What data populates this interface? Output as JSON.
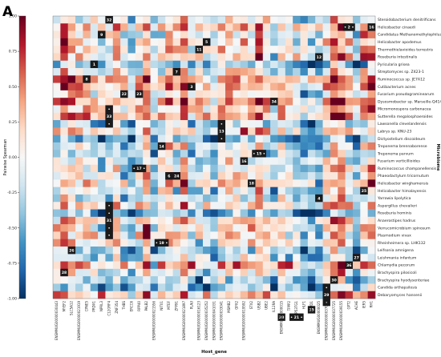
{
  "chart_data": {
    "type": "heatmap",
    "panel_label": "A",
    "title": "",
    "xlabel": "Host_gene",
    "ylabel": "Microbiome",
    "colorbar_label": "Pairwise Spearman",
    "colorbar_range": [
      -1.0,
      1.0
    ],
    "colorbar_ticks": [
      "1.00",
      "0.75",
      "0.50",
      "0.25",
      "0.00",
      "-0.25",
      "-0.50",
      "-0.75",
      "-1.00"
    ],
    "colorscale": [
      "#053061",
      "#2166ac",
      "#4393c3",
      "#92c5de",
      "#d1e5f0",
      "#f7f7f7",
      "#fddbc7",
      "#f4a582",
      "#d6604d",
      "#b2182b",
      "#67001f"
    ],
    "x_categories": [
      "ENSMMUG00000030443",
      "MYEF2",
      "SLC5A12",
      "ENSMMUG00000021919",
      "CPNE5",
      "PRDX1",
      "NPRL3",
      "C12ORF4",
      "ZNF354",
      "THBS",
      "ERCC6",
      "RPP40",
      "PALB2",
      "ENSMMUG00000021556",
      "NIT01",
      "MTEF",
      "ZFP91",
      "ENSMMUG00000021897",
      "PLAU",
      "ENSMMUG00000016123",
      "ENSMMUG00000035252",
      "ENSMMUG00000041031",
      "ENSMMUG00000033041",
      "MSMB2",
      "GPX2",
      "ENSMMUG00000019592",
      "STX2",
      "USB2",
      "UBE2",
      "IL12RA",
      "ENSMMUG00000015",
      "TPPP2",
      "TP53TG1",
      "HLF1",
      "GRWD1",
      "ENSMMUG00000025",
      "ENSMMUG00000037016",
      "ENSMMUG00000037725",
      "ENSMMUG00000039155",
      "GPT2",
      "ACHE",
      "IER5",
      "RH1"
    ],
    "y_categories": [
      "Steroidobacterium denitrificans",
      "Helicobacter cinaedi",
      "Candidatus Methanomethylophilus alvus",
      "Helicobacter apodemus",
      "Thermothielavioides terrestris",
      "Roseburia intestinalis",
      "Pyricularia grisea",
      "Streptomyces sp. Z423-1",
      "Ruminococcus sp. JE7A12",
      "Cutibacterium acnes",
      "Fusarium pseudograminearum",
      "Dysosmobacter sp. Marseille-Q4140",
      "Micromonospora carbonacea",
      "Sutterella megalosphaeroides",
      "Lawsonella clevelandensis",
      "Labrys sp. KNU-23",
      "Dictyostelium discoideum",
      "Treponema brennaborense",
      "Treponema parvum",
      "Fusarium verticillioides",
      "Ruminococcus champanellensis",
      "Phaeodactylum tricornutum",
      "Helicobacter winghamensis",
      "Helicobacter himalayensis",
      "Yarrowia lipolytica",
      "Aspergillus chevalieri",
      "Roseburia hominis",
      "Anaerostipes hadrus",
      "Verrucomicrobium spinosum",
      "Plasmodium vivax",
      "Rheinheimera sp. LHK132",
      "Leifsonia amnigena",
      "Leishmania infantum",
      "Chlamydia pecorum",
      "Brachyspira pilosicoli",
      "Brachyspira hyodysenteriae",
      "Candida orthopsilosis",
      "Debaryomyces hansenii"
    ],
    "highlights": [
      {
        "label": "32",
        "x": 7,
        "y": 0
      },
      {
        "label": "• 2 •",
        "x": 39,
        "y": 1
      },
      {
        "label": "16",
        "x": 42,
        "y": 1
      },
      {
        "label": "9",
        "x": 6,
        "y": 2
      },
      {
        "label": "5",
        "x": 20,
        "y": 3
      },
      {
        "label": "11",
        "x": 19,
        "y": 4
      },
      {
        "label": "12",
        "x": 35,
        "y": 5
      },
      {
        "label": "1",
        "x": 5,
        "y": 6
      },
      {
        "label": "7",
        "x": 16,
        "y": 7
      },
      {
        "label": "8",
        "x": 4,
        "y": 8
      },
      {
        "label": "3",
        "x": 18,
        "y": 9
      },
      {
        "label": "22",
        "x": 9,
        "y": 10
      },
      {
        "label": "23",
        "x": 11,
        "y": 10
      },
      {
        "label": "34",
        "x": 29,
        "y": 11
      },
      {
        "label": "•",
        "x": 7,
        "y": 12
      },
      {
        "label": "33",
        "x": 7,
        "y": 13
      },
      {
        "label": "•",
        "x": 7,
        "y": 14
      },
      {
        "label": "•",
        "x": 22,
        "y": 14
      },
      {
        "label": "13",
        "x": 22,
        "y": 15
      },
      {
        "label": "•",
        "x": 22,
        "y": 16
      },
      {
        "label": "14",
        "x": 14,
        "y": 17
      },
      {
        "label": "• 15 •",
        "x": 27,
        "y": 18
      },
      {
        "label": "16",
        "x": 25,
        "y": 19
      },
      {
        "label": "• 17 •",
        "x": 11,
        "y": 20
      },
      {
        "label": "6",
        "x": 15,
        "y": 21
      },
      {
        "label": "24",
        "x": 16,
        "y": 21
      },
      {
        "label": "18",
        "x": 26,
        "y": 22
      },
      {
        "label": "25",
        "x": 41,
        "y": 23
      },
      {
        "label": "4",
        "x": 35,
        "y": 24
      },
      {
        "label": "•",
        "x": 7,
        "y": 25
      },
      {
        "label": "•",
        "x": 7,
        "y": 26
      },
      {
        "label": "31",
        "x": 7,
        "y": 27
      },
      {
        "label": "•",
        "x": 7,
        "y": 28
      },
      {
        "label": "•",
        "x": 7,
        "y": 29
      },
      {
        "label": "• 19 •",
        "x": 14,
        "y": 30
      },
      {
        "label": "26",
        "x": 2,
        "y": 31
      },
      {
        "label": "27",
        "x": 40,
        "y": 32
      },
      {
        "label": "36",
        "x": 39,
        "y": 33
      },
      {
        "label": "28",
        "x": 1,
        "y": 34
      },
      {
        "label": "30",
        "x": 37,
        "y": 35
      },
      {
        "label": "•",
        "x": 36,
        "y": 36
      },
      {
        "label": "29",
        "x": 36,
        "y": 37
      },
      {
        "label": "•",
        "x": 36,
        "y": 38
      },
      {
        "label": "35",
        "x": 34,
        "y": 39
      },
      {
        "label": "20",
        "x": 30,
        "y": 40
      },
      {
        "label": "• 21 •",
        "x": 32,
        "y": 40
      }
    ]
  }
}
